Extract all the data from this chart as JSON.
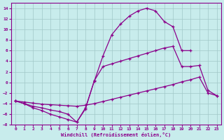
{
  "background_color": "#c8ecec",
  "grid_color": "#a0c8c8",
  "line_color": "#8b008b",
  "xlim": [
    -0.5,
    23.5
  ],
  "ylim": [
    -8,
    15
  ],
  "xlabel": "Windchill (Refroidissement éolien,°C)",
  "xticks": [
    0,
    1,
    2,
    3,
    4,
    5,
    6,
    7,
    8,
    9,
    10,
    11,
    12,
    13,
    14,
    15,
    16,
    17,
    18,
    19,
    20,
    21,
    22,
    23
  ],
  "yticks": [
    -8,
    -6,
    -4,
    -2,
    0,
    2,
    4,
    6,
    8,
    10,
    12,
    14
  ],
  "line1_x": [
    0,
    1,
    2,
    3,
    4,
    5,
    6,
    7,
    8,
    9,
    10,
    11,
    12,
    13,
    14,
    15,
    16,
    17,
    18,
    19,
    20
  ],
  "line1_y": [
    -3.5,
    -4.0,
    -4.8,
    -5.3,
    -6.0,
    -6.5,
    -7.0,
    -7.5,
    -4.8,
    0.2,
    5.0,
    9.0,
    11.0,
    12.5,
    13.5,
    14.0,
    13.5,
    11.5,
    10.5,
    6.0,
    6.0
  ],
  "line2_x": [
    0,
    1,
    2,
    3,
    4,
    5,
    6,
    7,
    8,
    9,
    10,
    11,
    12,
    13,
    14,
    15,
    16,
    17,
    18,
    19,
    20,
    21,
    22,
    23
  ],
  "line2_y": [
    -3.5,
    -3.7,
    -3.9,
    -4.1,
    -4.2,
    -4.3,
    -4.4,
    -4.5,
    -4.3,
    -4.0,
    -3.6,
    -3.2,
    -2.8,
    -2.4,
    -2.0,
    -1.6,
    -1.2,
    -0.8,
    -0.4,
    0.1,
    0.5,
    1.0,
    -2.0,
    -2.5
  ],
  "line3_x": [
    0,
    1,
    2,
    3,
    4,
    5,
    6,
    7,
    8,
    9,
    10,
    11,
    12,
    13,
    14,
    15,
    16,
    17,
    18,
    19,
    20,
    21,
    22,
    23
  ],
  "line3_y": [
    -3.5,
    -4.0,
    -4.5,
    -4.8,
    -5.2,
    -5.5,
    -6.0,
    -7.5,
    -5.0,
    0.3,
    3.0,
    3.5,
    4.0,
    4.5,
    5.0,
    5.5,
    6.0,
    6.5,
    6.8,
    3.0,
    3.0,
    3.2,
    -1.5,
    -2.5
  ]
}
